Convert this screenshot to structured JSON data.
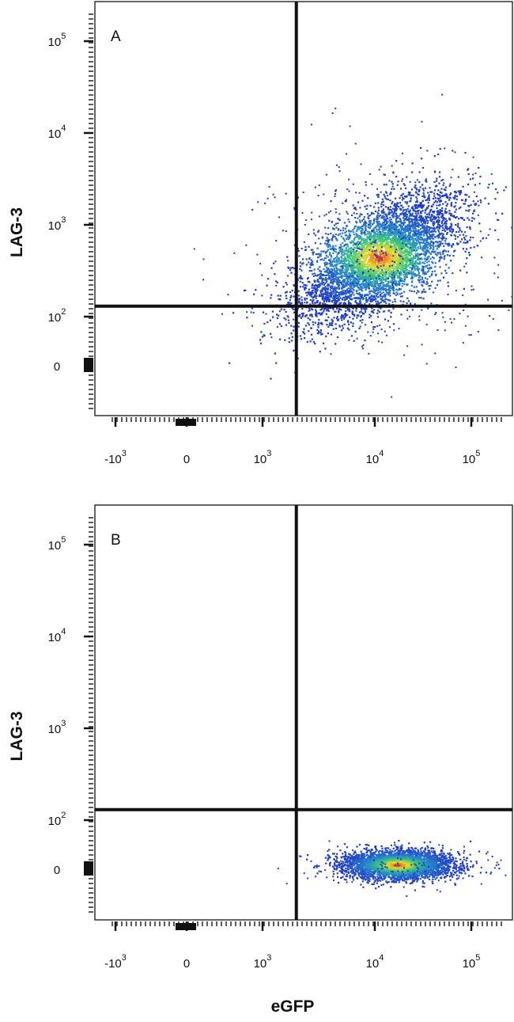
{
  "chart_data": [
    {
      "type": "scatter",
      "subtype": "flow-cytometry density plot",
      "panel_label": "A",
      "xlabel": "",
      "ylabel": "LAG-3",
      "x_scale": "biexponential",
      "y_scale": "biexponential",
      "xlim": [
        -2000,
        200000
      ],
      "ylim": [
        -150,
        250000
      ],
      "x_ticks": [
        "-10^3",
        "0",
        "10^3",
        "10^4",
        "10^5"
      ],
      "x_tick_values": [
        -1000,
        0,
        1000,
        10000,
        100000
      ],
      "y_ticks": [
        "0",
        "10^2",
        "10^3",
        "10^4",
        "10^5"
      ],
      "y_tick_values": [
        0,
        100,
        1000,
        10000,
        100000
      ],
      "quadrant_gate": {
        "x": 2000,
        "y": 130
      },
      "population": {
        "center_x": 11000,
        "center_y": 450,
        "spread": "wide, diagonal",
        "peak_density_color": "red"
      },
      "legend": "none",
      "grid": false
    },
    {
      "type": "scatter",
      "subtype": "flow-cytometry density plot",
      "panel_label": "B",
      "xlabel": "eGFP",
      "ylabel": "LAG-3",
      "x_scale": "biexponential",
      "y_scale": "biexponential",
      "xlim": [
        -2000,
        200000
      ],
      "ylim": [
        -150,
        250000
      ],
      "x_ticks": [
        "-10^3",
        "0",
        "10^3",
        "10^4",
        "10^5"
      ],
      "x_tick_values": [
        -1000,
        0,
        1000,
        10000,
        100000
      ],
      "y_ticks": [
        "0",
        "10^2",
        "10^3",
        "10^4",
        "10^5"
      ],
      "y_tick_values": [
        0,
        100,
        1000,
        10000,
        100000
      ],
      "quadrant_gate": {
        "x": 2000,
        "y": 130
      },
      "population": {
        "center_x": 17000,
        "center_y": 10,
        "spread": "compact, horizontal",
        "peak_density_color": "red"
      },
      "legend": "none",
      "grid": false
    }
  ]
}
